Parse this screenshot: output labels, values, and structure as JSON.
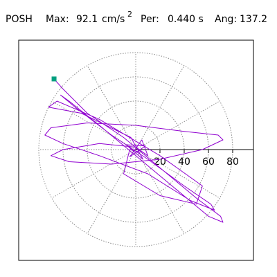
{
  "chart_data": {
    "type": "polar-orbit",
    "header": {
      "station": "POSH",
      "max_label": "Max:",
      "max_value": "92.1",
      "max_unit": "cm/s",
      "max_unit_exp": "2",
      "per_label": "Per:",
      "per_value": "0.440 s",
      "ang_label": "Ang:",
      "ang_value": "137.2"
    },
    "rlim": [
      0,
      80
    ],
    "rticks": [
      20,
      40,
      60,
      80
    ],
    "grid": true,
    "color": "#9000d0",
    "start_color": "#00a080",
    "trace": {
      "x": [
        -67.4,
        -60,
        -40,
        -10,
        20,
        50,
        70,
        72,
        60,
        30,
        0,
        -30,
        -55,
        -62,
        -50,
        -20,
        10,
        40,
        62,
        65,
        45,
        10,
        -30,
        -60,
        -75,
        -70,
        -40,
        0,
        40,
        68,
        72,
        55,
        20,
        -20,
        -55,
        -70,
        -60,
        -30,
        0,
        10,
        5,
        -5,
        8,
        -8,
        6,
        -4,
        -45,
        -72,
        -65,
        -30,
        20,
        55,
        50,
        20,
        -10,
        -5,
        3
      ],
      "y": [
        58.3,
        50,
        30,
        10,
        -15,
        -40,
        -55,
        -60,
        -55,
        -30,
        -5,
        20,
        40,
        45,
        35,
        12,
        -8,
        -30,
        -45,
        -50,
        -42,
        -20,
        -5,
        5,
        12,
        18,
        22,
        20,
        15,
        12,
        8,
        0,
        -8,
        -12,
        -10,
        -5,
        0,
        5,
        2,
        -5,
        8,
        -6,
        3,
        4,
        -8,
        10,
        30,
        35,
        40,
        25,
        -5,
        -30,
        -45,
        -38,
        -20,
        0,
        -2
      ]
    }
  }
}
